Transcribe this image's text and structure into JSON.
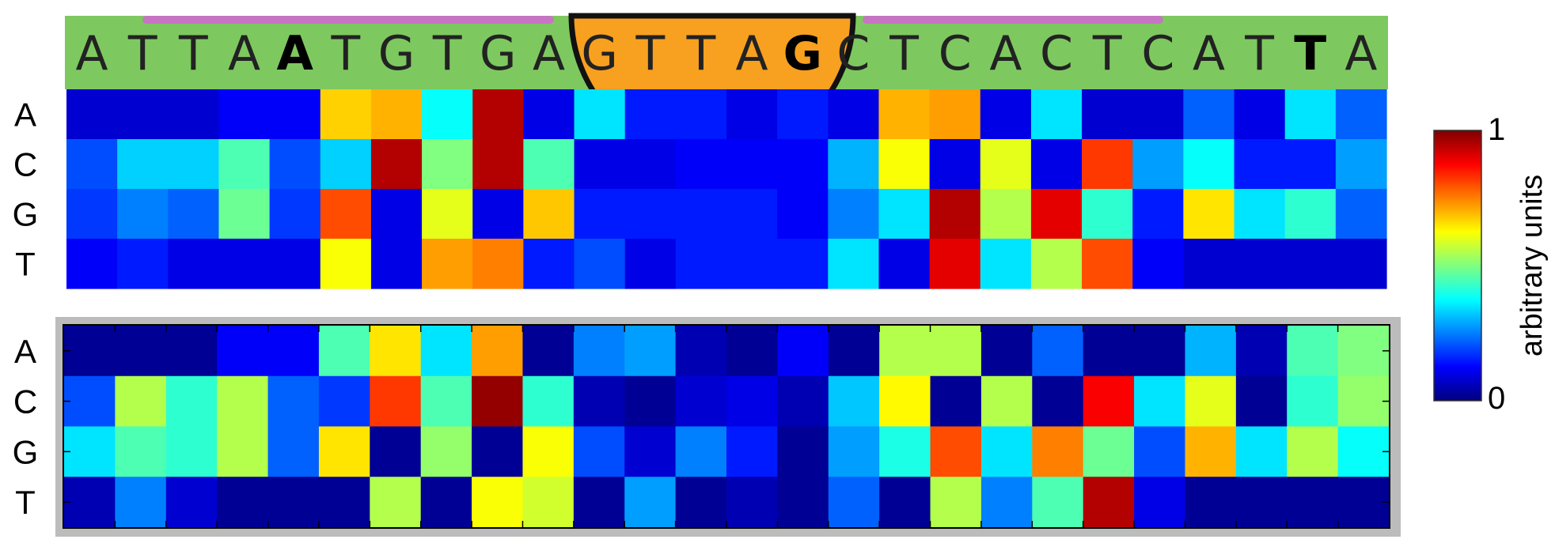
{
  "colors": {
    "banner_green": "#7ec860",
    "banner_purple": "#c675c2",
    "banner_orange": "#f8a01f",
    "frame_gray": "#bcbcbc"
  },
  "sequence": {
    "letters": [
      "A",
      "T",
      "T",
      "A",
      "A",
      "T",
      "G",
      "T",
      "G",
      "A",
      "G",
      "T",
      "T",
      "A",
      "G",
      "C",
      "T",
      "C",
      "A",
      "C",
      "T",
      "C",
      "A",
      "T",
      "T",
      "A"
    ],
    "bold": [
      false,
      false,
      false,
      false,
      true,
      false,
      false,
      false,
      false,
      false,
      false,
      false,
      false,
      false,
      true,
      false,
      false,
      false,
      false,
      false,
      false,
      false,
      false,
      false,
      true,
      false
    ]
  },
  "colorbar": {
    "max_label": "1",
    "min_label": "0",
    "label": "arbitrary units",
    "colormap": "jet"
  },
  "chart_data": [
    {
      "type": "heatmap",
      "rows": [
        "A",
        "C",
        "G",
        "T"
      ],
      "columns": 26,
      "vmin": 0,
      "vmax": 1,
      "colormap": "jet",
      "values": [
        [
          0.08,
          0.08,
          0.08,
          0.12,
          0.12,
          0.67,
          0.7,
          0.38,
          0.95,
          0.1,
          0.35,
          0.15,
          0.15,
          0.1,
          0.15,
          0.1,
          0.7,
          0.72,
          0.1,
          0.35,
          0.08,
          0.08,
          0.22,
          0.1,
          0.35,
          0.22
        ],
        [
          0.2,
          0.33,
          0.33,
          0.45,
          0.2,
          0.33,
          0.95,
          0.5,
          0.95,
          0.45,
          0.1,
          0.1,
          0.12,
          0.12,
          0.12,
          0.3,
          0.62,
          0.1,
          0.6,
          0.1,
          0.82,
          0.28,
          0.38,
          0.15,
          0.15,
          0.28
        ],
        [
          0.18,
          0.25,
          0.22,
          0.48,
          0.18,
          0.8,
          0.1,
          0.6,
          0.1,
          0.68,
          0.15,
          0.15,
          0.15,
          0.15,
          0.12,
          0.25,
          0.35,
          0.95,
          0.55,
          0.9,
          0.42,
          0.15,
          0.65,
          0.35,
          0.42,
          0.22
        ],
        [
          0.12,
          0.15,
          0.1,
          0.1,
          0.1,
          0.62,
          0.1,
          0.72,
          0.75,
          0.15,
          0.2,
          0.1,
          0.15,
          0.15,
          0.15,
          0.35,
          0.1,
          0.9,
          0.35,
          0.55,
          0.8,
          0.12,
          0.08,
          0.08,
          0.08,
          0.08
        ]
      ]
    },
    {
      "type": "heatmap",
      "rows": [
        "A",
        "C",
        "G",
        "T"
      ],
      "columns": 26,
      "vmin": 0,
      "vmax": 1,
      "colormap": "jet",
      "values": [
        [
          0.02,
          0.02,
          0.02,
          0.12,
          0.12,
          0.45,
          0.65,
          0.35,
          0.72,
          0.02,
          0.25,
          0.28,
          0.05,
          0.02,
          0.12,
          0.02,
          0.55,
          0.55,
          0.02,
          0.22,
          0.02,
          0.02,
          0.3,
          0.05,
          0.45,
          0.5
        ],
        [
          0.2,
          0.55,
          0.42,
          0.55,
          0.22,
          0.18,
          0.82,
          0.45,
          0.98,
          0.42,
          0.05,
          0.02,
          0.08,
          0.1,
          0.05,
          0.32,
          0.63,
          0.02,
          0.55,
          0.02,
          0.88,
          0.35,
          0.6,
          0.02,
          0.42,
          0.52
        ],
        [
          0.35,
          0.45,
          0.42,
          0.55,
          0.22,
          0.65,
          0.02,
          0.52,
          0.02,
          0.62,
          0.2,
          0.08,
          0.25,
          0.15,
          0.02,
          0.28,
          0.4,
          0.8,
          0.35,
          0.75,
          0.48,
          0.2,
          0.7,
          0.35,
          0.55,
          0.38
        ],
        [
          0.05,
          0.25,
          0.08,
          0.02,
          0.02,
          0.02,
          0.55,
          0.02,
          0.62,
          0.58,
          0.02,
          0.28,
          0.02,
          0.05,
          0.02,
          0.22,
          0.02,
          0.55,
          0.25,
          0.45,
          0.95,
          0.1,
          0.02,
          0.02,
          0.02,
          0.02
        ]
      ]
    }
  ]
}
